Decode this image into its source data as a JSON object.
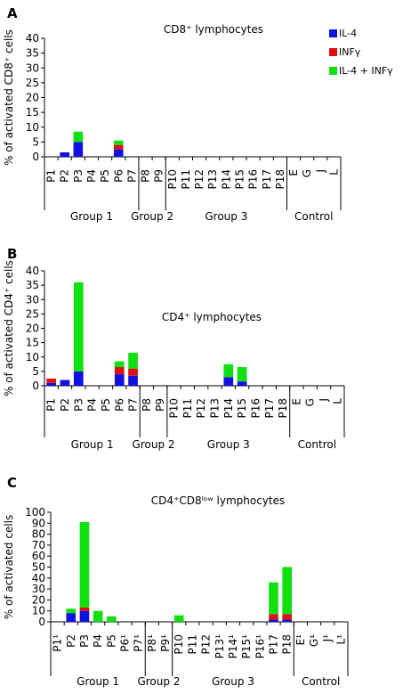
{
  "colors": {
    "il4": "#1010e0",
    "infg": "#e01010",
    "both": "#10e010"
  },
  "legend": {
    "il4": "IL-4",
    "infg": "INFγ",
    "both": "IL-4 + INFγ"
  },
  "chart_data": [
    {
      "panel": "A",
      "type": "bar",
      "stacked": true,
      "title": "CD8⁺ lymphocytes",
      "ylabel": "% of activated CD8⁺ cells",
      "ylim": [
        0,
        40
      ],
      "yticks": [
        0,
        5,
        10,
        15,
        20,
        25,
        30,
        35,
        40
      ],
      "legend_position": "top-right",
      "categories": [
        "P1",
        "P2",
        "P3",
        "P4",
        "P5",
        "P6",
        "P7",
        "P8",
        "P9",
        "P10",
        "P11",
        "P12",
        "P13",
        "P14",
        "P15",
        "P16",
        "P17",
        "P18",
        "E",
        "G",
        "J",
        "L"
      ],
      "series": [
        {
          "name": "IL-4",
          "values": [
            0,
            1.5,
            5,
            0,
            0,
            2.5,
            0,
            0,
            0,
            0,
            0,
            0,
            0,
            0,
            0,
            0,
            0,
            0,
            0,
            0,
            0,
            0
          ]
        },
        {
          "name": "INFγ",
          "values": [
            0,
            0,
            0,
            0,
            0,
            1.5,
            0,
            0,
            0,
            0,
            0,
            0,
            0,
            0,
            0,
            0,
            0,
            0,
            0,
            0,
            0,
            0
          ]
        },
        {
          "name": "IL-4 + INFγ",
          "values": [
            0,
            0,
            3.5,
            0,
            0,
            1.5,
            0,
            0,
            0,
            0,
            0,
            0,
            0,
            0,
            0,
            0,
            0,
            0,
            0,
            0,
            0,
            0
          ]
        }
      ],
      "groups": [
        {
          "label": "Group 1",
          "from": 0,
          "to": 6
        },
        {
          "label": "Group 2",
          "from": 7,
          "to": 8
        },
        {
          "label": "Group 3",
          "from": 9,
          "to": 17
        },
        {
          "label": "Control",
          "from": 18,
          "to": 21
        }
      ]
    },
    {
      "panel": "B",
      "type": "bar",
      "stacked": true,
      "title": "CD4⁺ lymphocytes",
      "ylabel": "% of activated CD4⁺ cells",
      "ylim": [
        0,
        40
      ],
      "yticks": [
        0,
        5,
        10,
        15,
        20,
        25,
        30,
        35,
        40
      ],
      "categories": [
        "P1",
        "P2",
        "P3",
        "P4",
        "P5",
        "P6",
        "P7",
        "P8",
        "P9",
        "P10",
        "P11",
        "P12",
        "P13",
        "P14",
        "P15",
        "P16",
        "P17",
        "P18",
        "E",
        "G",
        "J",
        "L"
      ],
      "series": [
        {
          "name": "IL-4",
          "values": [
            1,
            2,
            5,
            0,
            0,
            4,
            3.5,
            0,
            0,
            0,
            0,
            0,
            0,
            3,
            1.5,
            0,
            0,
            0,
            0,
            0,
            0,
            0
          ]
        },
        {
          "name": "INFγ",
          "values": [
            1.5,
            0,
            0,
            0,
            0,
            2.5,
            2.5,
            0,
            0,
            0,
            0,
            0,
            0,
            0,
            0,
            0,
            0,
            0,
            0,
            0,
            0,
            0
          ]
        },
        {
          "name": "IL-4 + INFγ",
          "values": [
            0,
            0,
            31,
            0,
            0,
            2,
            5.5,
            0,
            0,
            0,
            0,
            0,
            0,
            4.5,
            5,
            0,
            0,
            0,
            0,
            0,
            0,
            0
          ]
        }
      ],
      "groups": [
        {
          "label": "Group 1",
          "from": 0,
          "to": 6
        },
        {
          "label": "Group 2",
          "from": 7,
          "to": 8
        },
        {
          "label": "Group 3",
          "from": 9,
          "to": 17
        },
        {
          "label": "Control",
          "from": 18,
          "to": 21
        }
      ]
    },
    {
      "panel": "C",
      "type": "bar",
      "stacked": true,
      "title": "CD4⁺CD8ˡᵒʷ lymphocytes",
      "ylabel": "% of activated cells",
      "ylim": [
        0,
        100
      ],
      "yticks": [
        0,
        10,
        20,
        30,
        40,
        50,
        60,
        70,
        80,
        90,
        100
      ],
      "categories": [
        "P1¹",
        "P2",
        "P3",
        "P4",
        "P5",
        "P6¹",
        "P7¹",
        "P8¹",
        "P9¹",
        "P10",
        "P11",
        "P12",
        "P13¹",
        "P14¹",
        "P15¹",
        "P16¹",
        "P17",
        "P18",
        "E¹",
        "G¹",
        "J¹",
        "L¹"
      ],
      "series": [
        {
          "name": "IL-4",
          "values": [
            0,
            8,
            10,
            0,
            0,
            0,
            0,
            0,
            0,
            0,
            0,
            0,
            0,
            0,
            0,
            0,
            2,
            2,
            0,
            0,
            0,
            0
          ]
        },
        {
          "name": "INFγ",
          "values": [
            0,
            0,
            3,
            0,
            0,
            0,
            0,
            0,
            0,
            0,
            0,
            0,
            0,
            0,
            0,
            0,
            5,
            5,
            0,
            0,
            0,
            0
          ]
        },
        {
          "name": "IL-4 + INFγ",
          "values": [
            0,
            4,
            78,
            10,
            5,
            0,
            0,
            0,
            0,
            6,
            0,
            0,
            0,
            0,
            0,
            0,
            29,
            43,
            0,
            0,
            0,
            0
          ]
        }
      ],
      "groups": [
        {
          "label": "Group 1",
          "from": 0,
          "to": 6
        },
        {
          "label": "Group 2",
          "from": 7,
          "to": 8
        },
        {
          "label": "Group 3",
          "from": 9,
          "to": 17
        },
        {
          "label": "Control",
          "from": 18,
          "to": 21
        }
      ]
    }
  ]
}
